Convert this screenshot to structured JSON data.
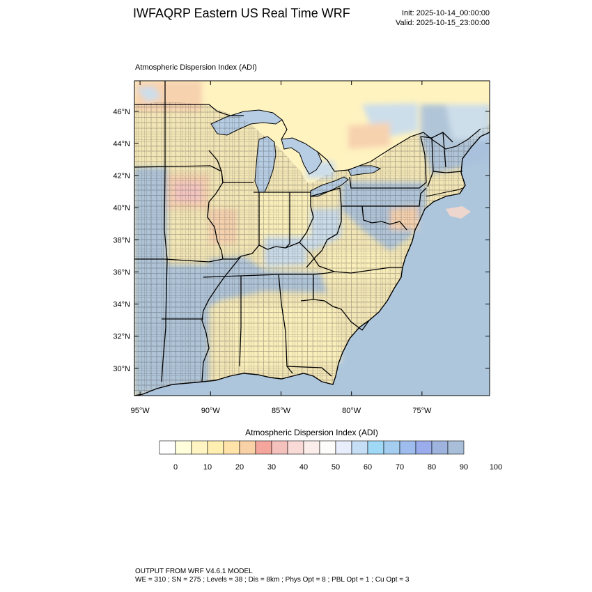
{
  "header": {
    "title": "IWFAQRP Eastern US Real Time WRF",
    "init": "Init: 2025-10-14_00:00:00",
    "valid": "Valid: 2025-10-15_23:00:00"
  },
  "plot": {
    "title": "Atmospheric Dispersion Index   (ADI)"
  },
  "map": {
    "lat_labels": [
      "46°N",
      "44°N",
      "42°N",
      "40°N",
      "38°N",
      "36°N",
      "34°N",
      "32°N",
      "30°N"
    ],
    "lon_labels": [
      "95°W",
      "90°W",
      "85°W",
      "80°W",
      "75°W"
    ],
    "lat_values": [
      46,
      44,
      42,
      40,
      38,
      36,
      34,
      32,
      30
    ],
    "lon_values": [
      -95,
      -90,
      -85,
      -80,
      -75
    ],
    "extent": {
      "lon_min": -95.4,
      "lon_max": -70.2,
      "lat_min": 28.3,
      "lat_max": 47.9
    },
    "colors": {
      "water": "#aec6dc",
      "lake": "#b7cde3",
      "land_base": "#f3e6b6",
      "high_adi": "#a9c1dc",
      "mid_high": "#c7dcef",
      "warm": "#f6cfae",
      "pink": "#f2c1c0",
      "yellow": "#fbf1bc",
      "canada_yellow": "#fff3c0"
    }
  },
  "colorbar": {
    "title": "Atmospheric Dispersion Index  (ADI)",
    "ticks": [
      "0",
      "10",
      "20",
      "30",
      "40",
      "50",
      "60",
      "70",
      "80",
      "90",
      "100"
    ],
    "tick_values": [
      0,
      10,
      20,
      30,
      40,
      50,
      60,
      70,
      80,
      90,
      100
    ],
    "colors": [
      "#ffffff",
      "#ffffdc",
      "#fff4c2",
      "#ffefb0",
      "#ffe3a8",
      "#f9d1a6",
      "#f4a69c",
      "#f5c1bd",
      "#f9dad7",
      "#fbeeea",
      "#fefbfb",
      "#e8eefb",
      "#c5def5",
      "#9fd9f6",
      "#a4cdf0",
      "#9ebdee",
      "#9aacec",
      "#9eb3dd",
      "#a9bfd9"
    ]
  },
  "footer": {
    "line1": "OUTPUT FROM WRF V4.6.1 MODEL",
    "line2": "WE = 310 ; SN = 275 ; Levels = 38 ; Dis = 8km ; Phys Opt = 8 ; PBL Opt = 1 ; Cu Opt = 3"
  }
}
